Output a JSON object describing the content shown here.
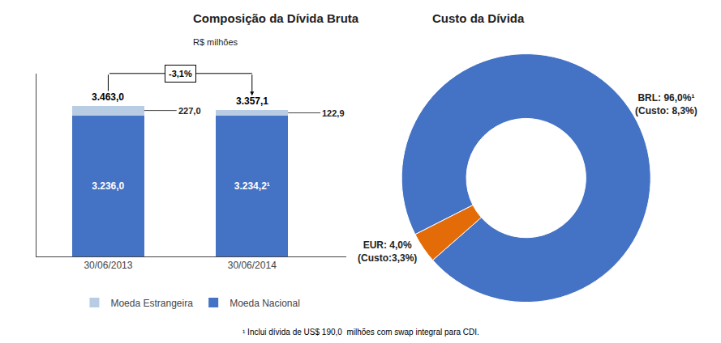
{
  "footnote": "¹ Inclui dívida de US$ 190,0  milhões com swap integral para CDI.",
  "chart_data": [
    {
      "type": "bar",
      "title": "Composição da Dívida Bruta",
      "subtitle": "R$ milhões",
      "stacked": true,
      "categories": [
        "30/06/2013",
        "30/06/2014"
      ],
      "series": [
        {
          "name": "Moeda Nacional",
          "color": "#4472C4",
          "values": [
            3236.0,
            3234.2
          ],
          "value_labels": [
            "3.236,0",
            "3.234,2¹"
          ]
        },
        {
          "name": "Moeda Estrangeira",
          "color": "#B8CCE4",
          "values": [
            227.0,
            122.9
          ],
          "value_labels": [
            "227,0",
            "122,9"
          ]
        }
      ],
      "totals": {
        "values": [
          3463.0,
          3357.1
        ],
        "value_labels": [
          "3.463,0",
          "3.357,1"
        ]
      },
      "annotations": [
        {
          "text": "-3,1%",
          "from": "30/06/2013",
          "to": "30/06/2014"
        }
      ],
      "ylim": [
        0,
        4200
      ],
      "yticks": [],
      "tick_labels": "x",
      "grid": false,
      "legend": "bottom",
      "data_labels": true
    },
    {
      "type": "donut",
      "title": "Custo da Dívida",
      "values": [
        96.0,
        4.0
      ],
      "value_labels": [
        "BRL: 96,0%¹\n(Custo: 8,3%)",
        "EUR: 4,0%\n(Custo:3,3%)"
      ],
      "colors": [
        "#4472C4",
        "#E36C09"
      ],
      "data_labels": true
    }
  ]
}
